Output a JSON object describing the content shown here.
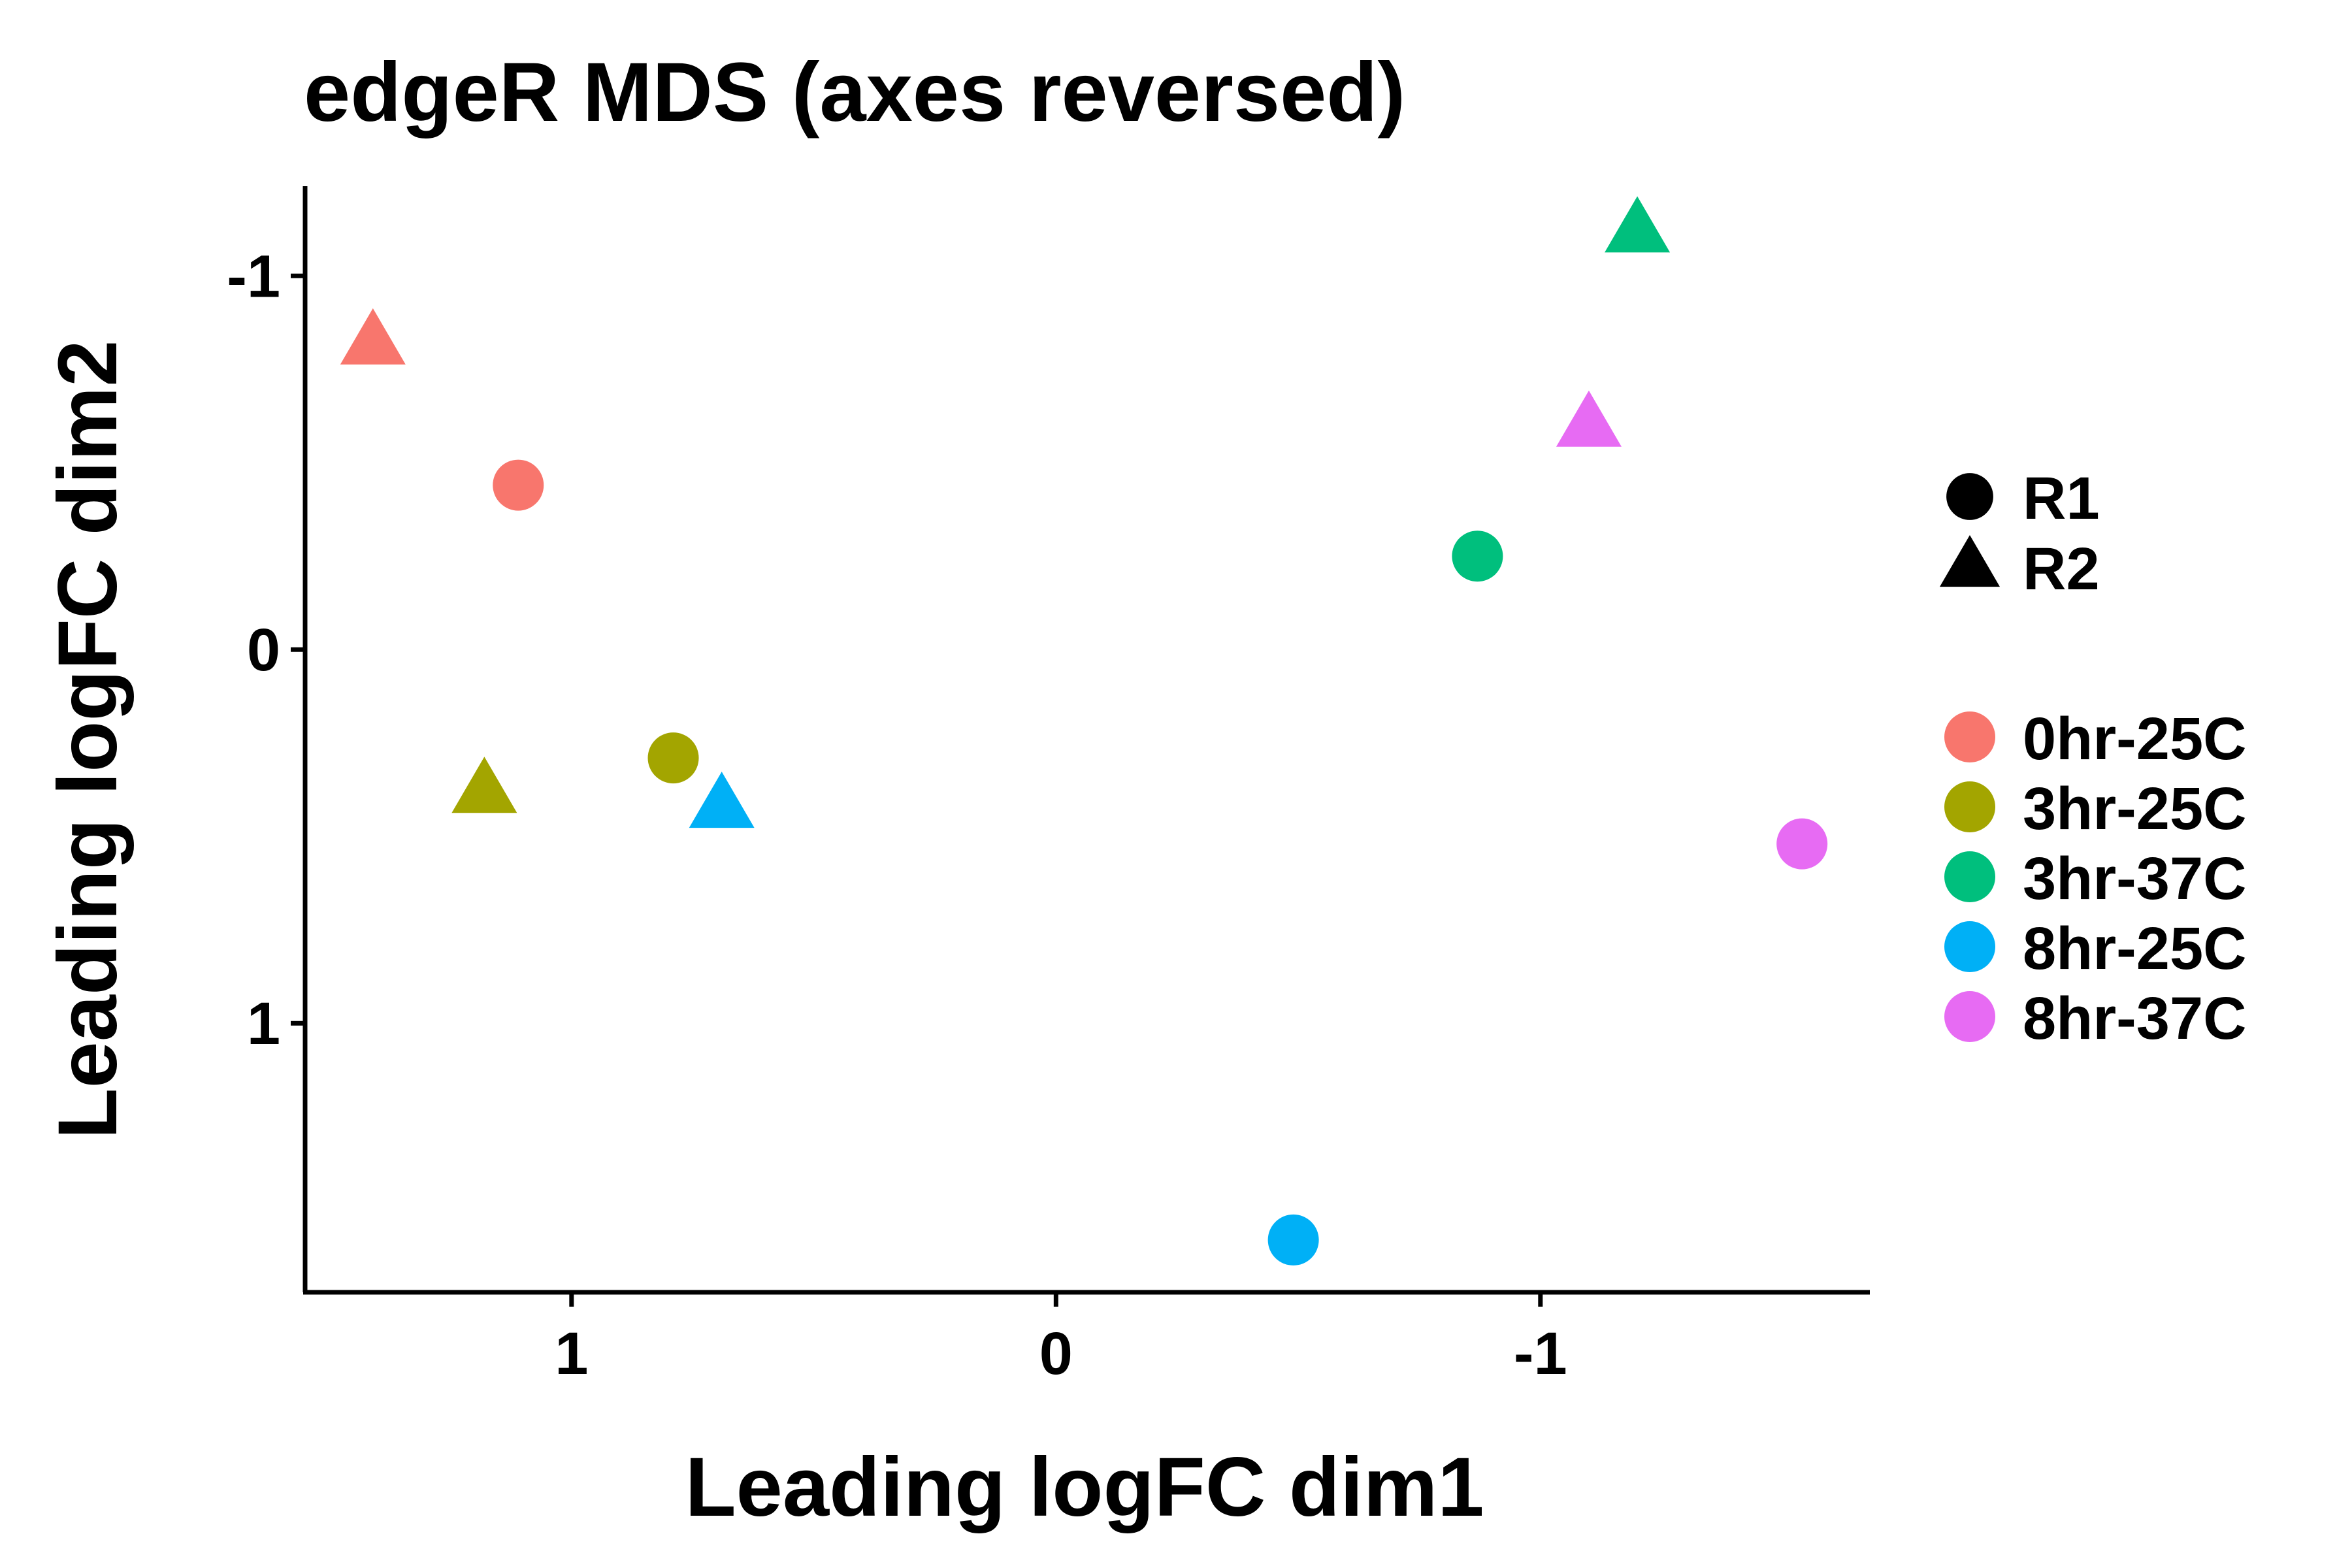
{
  "chart_data": {
    "type": "scatter",
    "title": "edgeR MDS (axes reversed)",
    "xlabel": "Leading logFC dim1",
    "ylabel": "Leading logFC dim2",
    "x_reversed": true,
    "y_reversed": true,
    "xlim": [
      1.55,
      -1.68
    ],
    "ylim": [
      -1.24,
      1.72
    ],
    "xticks": [
      {
        "value": 1,
        "label": "1"
      },
      {
        "value": 0,
        "label": "0"
      },
      {
        "value": -1,
        "label": "-1"
      }
    ],
    "yticks": [
      {
        "value": -1,
        "label": "-1"
      },
      {
        "value": 0,
        "label": "0"
      },
      {
        "value": 1,
        "label": "1"
      }
    ],
    "grid": false,
    "legend_position": "right",
    "shape_legend": [
      {
        "label": "R1",
        "shape": "circle"
      },
      {
        "label": "R2",
        "shape": "triangle"
      }
    ],
    "color_legend": [
      {
        "label": "0hr-25C",
        "color": "#F8766D"
      },
      {
        "label": "3hr-25C",
        "color": "#A3A500"
      },
      {
        "label": "3hr-37C",
        "color": "#00BF7D"
      },
      {
        "label": "8hr-25C",
        "color": "#00B0F6"
      },
      {
        "label": "8hr-37C",
        "color": "#E76BF3"
      }
    ],
    "points": [
      {
        "group": "0hr-25C",
        "replicate": "R1",
        "x": 1.11,
        "y": -0.44
      },
      {
        "group": "0hr-25C",
        "replicate": "R2",
        "x": 1.41,
        "y": -0.82
      },
      {
        "group": "3hr-25C",
        "replicate": "R1",
        "x": 0.79,
        "y": 0.29
      },
      {
        "group": "3hr-25C",
        "replicate": "R2",
        "x": 1.18,
        "y": 0.38
      },
      {
        "group": "3hr-37C",
        "replicate": "R1",
        "x": -0.87,
        "y": -0.25
      },
      {
        "group": "3hr-37C",
        "replicate": "R2",
        "x": -1.2,
        "y": -1.12
      },
      {
        "group": "8hr-25C",
        "replicate": "R1",
        "x": -0.49,
        "y": 1.58
      },
      {
        "group": "8hr-25C",
        "replicate": "R2",
        "x": 0.69,
        "y": 0.42
      },
      {
        "group": "8hr-37C",
        "replicate": "R1",
        "x": -1.54,
        "y": 0.52
      },
      {
        "group": "8hr-37C",
        "replicate": "R2",
        "x": -1.1,
        "y": -0.6
      }
    ]
  }
}
